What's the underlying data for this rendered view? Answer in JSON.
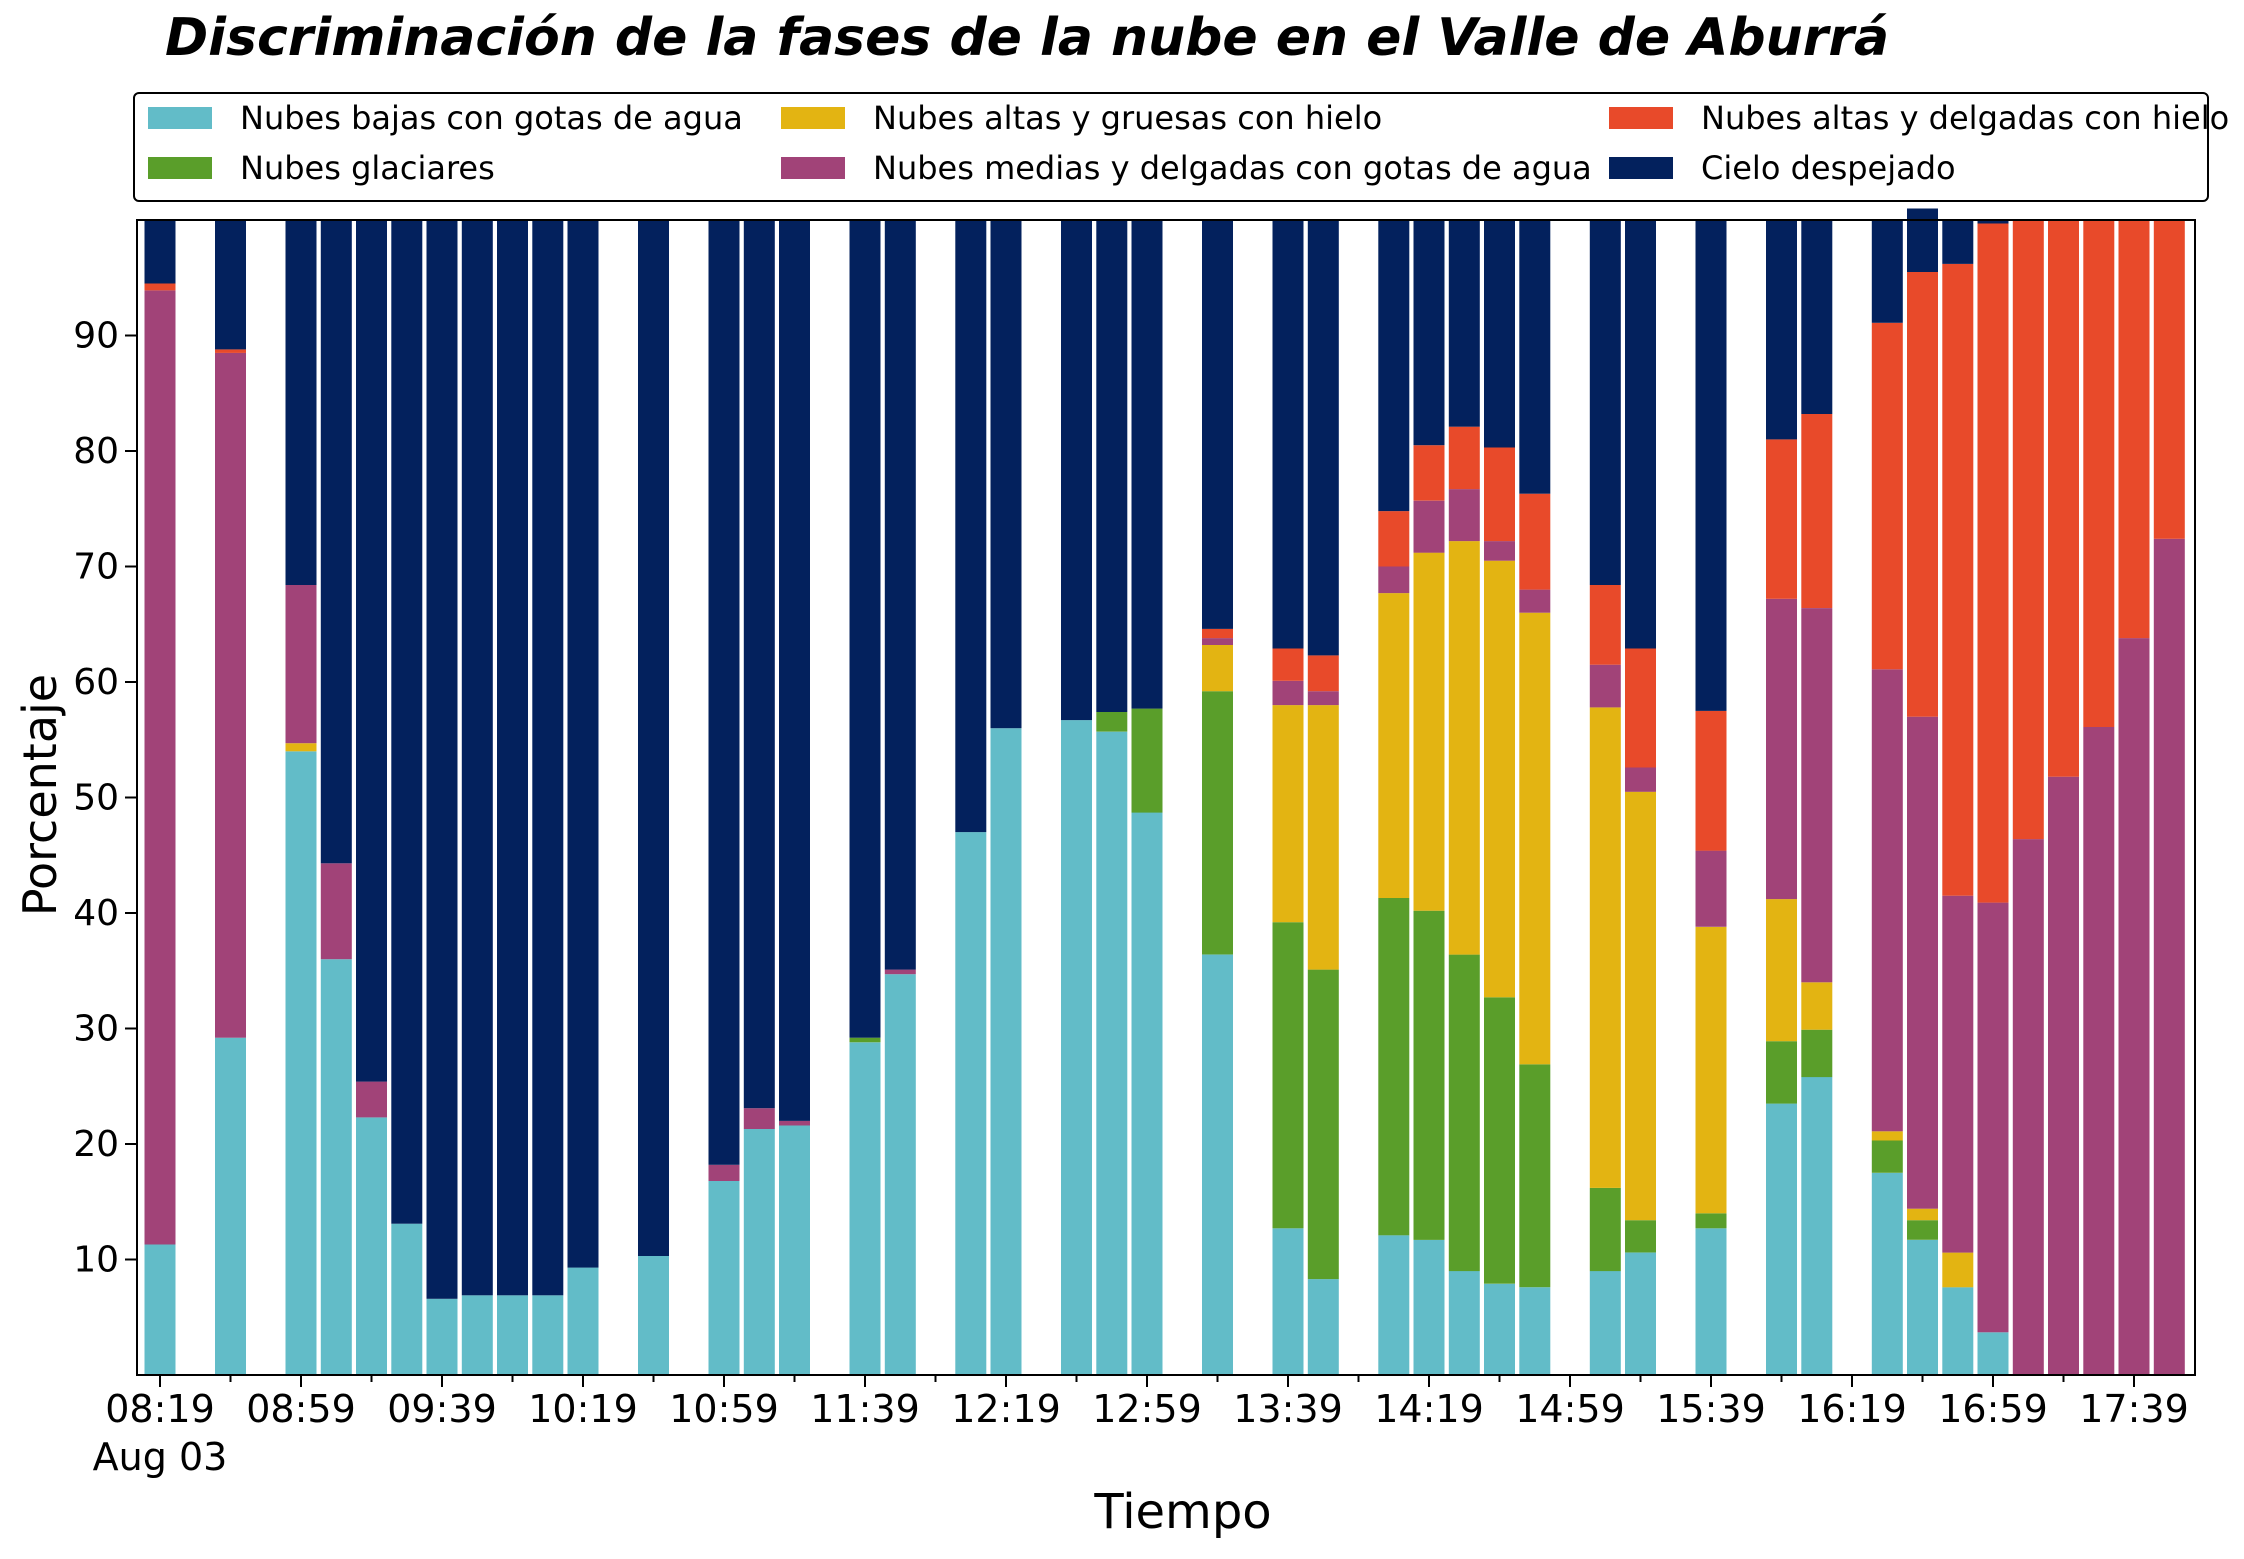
{
  "chart_data": {
    "type": "bar",
    "stacked": true,
    "title": "Discriminación de la fases de la nube en el Valle de Aburrá",
    "xlabel": "Tiempo",
    "ylabel": "Porcentaje",
    "ylim": [
      0,
      100
    ],
    "yticks": [
      10,
      20,
      30,
      40,
      50,
      60,
      70,
      80,
      90
    ],
    "x_tick_labels": [
      "08:19",
      "08:59",
      "09:39",
      "10:19",
      "10:59",
      "11:39",
      "12:19",
      "12:59",
      "13:39",
      "14:19",
      "14:59",
      "15:39",
      "16:19",
      "16:59",
      "17:39"
    ],
    "x_date_label": "Aug 03",
    "legend_placement": "top",
    "grid": false,
    "categories": [
      "08:19",
      "08:29",
      "08:39",
      "08:49",
      "08:59",
      "09:09",
      "09:19",
      "09:29",
      "09:39",
      "09:49",
      "09:59",
      "10:09",
      "10:19",
      "10:29",
      "10:39",
      "10:49",
      "10:59",
      "11:09",
      "11:19",
      "11:29",
      "11:39",
      "11:49",
      "11:59",
      "12:09",
      "12:19",
      "12:29",
      "12:39",
      "12:49",
      "12:59",
      "13:09",
      "13:19",
      "13:29",
      "13:39",
      "13:49",
      "13:59",
      "14:09",
      "14:19",
      "14:29",
      "14:39",
      "14:49",
      "14:59",
      "15:09",
      "15:19",
      "15:29",
      "15:39",
      "15:49",
      "15:59",
      "16:09",
      "16:19",
      "16:29",
      "16:39",
      "16:49",
      "16:59",
      "17:09",
      "17:19",
      "17:29",
      "17:39",
      "17:49"
    ],
    "series": [
      {
        "name": "Nubes bajas con gotas de agua",
        "color": "#62bcc8",
        "values": [
          11.3,
          null,
          29.2,
          null,
          54.0,
          36.0,
          22.3,
          13.1,
          6.6,
          6.9,
          6.9,
          6.9,
          9.3,
          null,
          10.3,
          null,
          16.8,
          21.3,
          21.6,
          null,
          28.8,
          34.7,
          null,
          47.0,
          56.0,
          null,
          56.7,
          55.7,
          48.7,
          null,
          36.4,
          null,
          12.7,
          8.3,
          null,
          12.1,
          11.7,
          9.0,
          7.9,
          7.6,
          null,
          9.0,
          10.6,
          null,
          12.7,
          null,
          23.5,
          25.8,
          null,
          17.5,
          11.7,
          7.6,
          3.7,
          0,
          0,
          0,
          0,
          0
        ]
      },
      {
        "name": "Nubes glaciares",
        "color": "#5a9e2a",
        "values": [
          0,
          null,
          0,
          null,
          0,
          0,
          0,
          0,
          0,
          0,
          0,
          0,
          0,
          null,
          0,
          null,
          0,
          0,
          0,
          null,
          0.4,
          0,
          null,
          0,
          0,
          null,
          0,
          1.7,
          9.0,
          null,
          22.8,
          null,
          26.5,
          26.8,
          null,
          29.2,
          28.5,
          27.4,
          24.8,
          19.3,
          null,
          7.2,
          2.8,
          null,
          1.3,
          null,
          5.4,
          4.1,
          null,
          2.8,
          1.7,
          0,
          0,
          0,
          0,
          0,
          0,
          0
        ]
      },
      {
        "name": "Nubes altas y gruesas con hielo",
        "color": "#e3b412",
        "values": [
          0,
          null,
          0,
          null,
          0.7,
          0,
          0,
          0,
          0,
          0,
          0,
          0,
          0,
          null,
          0,
          null,
          0,
          0,
          0,
          null,
          0,
          0,
          null,
          0,
          0,
          null,
          0,
          0,
          0,
          null,
          4.0,
          null,
          18.8,
          22.9,
          null,
          26.4,
          31.0,
          35.8,
          37.8,
          39.1,
          null,
          41.6,
          37.1,
          null,
          24.8,
          null,
          12.3,
          4.1,
          null,
          0.8,
          1.0,
          3.0,
          0,
          0,
          0,
          0,
          0,
          0
        ]
      },
      {
        "name": "Nubes medias y delgadas con gotas de agua",
        "color": "#a14378",
        "values": [
          82.6,
          null,
          59.3,
          null,
          13.7,
          8.3,
          3.1,
          0,
          0,
          0,
          0,
          0,
          0,
          null,
          0,
          null,
          1.4,
          1.8,
          0.4,
          null,
          0,
          0.4,
          null,
          0,
          0,
          null,
          0,
          0,
          0,
          null,
          0.6,
          null,
          2.1,
          1.2,
          null,
          2.3,
          4.5,
          4.5,
          1.7,
          2.0,
          null,
          3.7,
          2.1,
          null,
          6.6,
          null,
          26.0,
          32.4,
          null,
          40.0,
          42.6,
          30.9,
          37.2,
          46.4,
          51.8,
          56.1,
          63.8,
          72.4
        ]
      },
      {
        "name": "Nubes altas y delgadas con hielo",
        "color": "#e84a2a",
        "values": [
          0.6,
          null,
          0.3,
          null,
          0,
          0,
          0,
          0,
          0,
          0,
          0,
          0,
          0,
          null,
          0,
          null,
          0,
          0,
          0,
          null,
          0,
          0,
          null,
          0,
          0,
          null,
          0,
          0,
          0,
          null,
          0.8,
          null,
          2.8,
          3.1,
          null,
          4.8,
          4.8,
          5.4,
          8.1,
          8.3,
          null,
          6.9,
          10.3,
          null,
          12.1,
          null,
          13.8,
          16.8,
          null,
          30.0,
          38.5,
          54.7,
          58.8,
          53.6,
          48.2,
          43.9,
          36.2,
          27.6
        ]
      },
      {
        "name": "Cielo despejado",
        "color": "#03215d",
        "values": [
          5.5,
          null,
          11.2,
          null,
          31.6,
          55.7,
          74.6,
          86.9,
          93.4,
          93.1,
          93.1,
          93.1,
          90.7,
          null,
          89.7,
          null,
          81.8,
          76.9,
          78.0,
          null,
          70.8,
          64.9,
          null,
          53.0,
          44.0,
          null,
          43.3,
          42.6,
          42.3,
          null,
          35.4,
          null,
          37.1,
          37.7,
          null,
          25.2,
          19.5,
          17.9,
          19.7,
          23.7,
          null,
          31.6,
          37.1,
          null,
          42.5,
          null,
          19.0,
          16.8,
          null,
          8.9,
          5.5,
          3.8,
          0.3,
          0,
          0,
          0,
          0,
          0
        ]
      }
    ]
  }
}
